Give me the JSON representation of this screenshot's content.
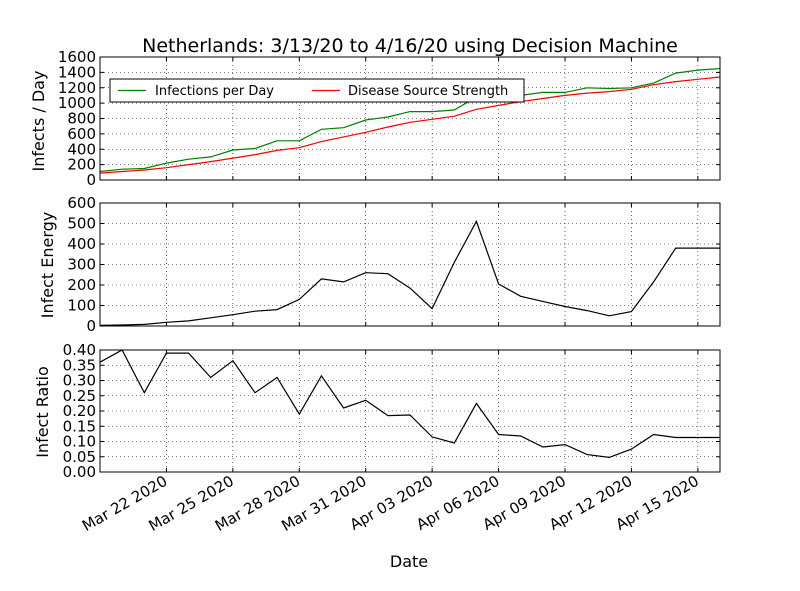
{
  "chart_data": {
    "type": "line",
    "title": "Netherlands: 3/13/20 to 4/16/20 using Decision Machine",
    "xlabel": "Date",
    "x_start": "2020-03-19",
    "x_end": "2020-04-16",
    "x_tick_labels": [
      "Mar 22 2020",
      "Mar 25 2020",
      "Mar 28 2020",
      "Mar 31 2020",
      "Apr 03 2020",
      "Apr 06 2020",
      "Apr 09 2020",
      "Apr 12 2020",
      "Apr 15 2020"
    ],
    "dates": [
      "2020-03-19",
      "2020-03-20",
      "2020-03-21",
      "2020-03-22",
      "2020-03-23",
      "2020-03-24",
      "2020-03-25",
      "2020-03-26",
      "2020-03-27",
      "2020-03-28",
      "2020-03-29",
      "2020-03-30",
      "2020-03-31",
      "2020-04-01",
      "2020-04-02",
      "2020-04-03",
      "2020-04-04",
      "2020-04-05",
      "2020-04-06",
      "2020-04-07",
      "2020-04-08",
      "2020-04-09",
      "2020-04-10",
      "2020-04-11",
      "2020-04-12",
      "2020-04-13",
      "2020-04-14",
      "2020-04-15",
      "2020-04-16"
    ],
    "panels": [
      {
        "ylabel": "Infects / Day",
        "ylim": [
          0,
          1600
        ],
        "yticks": [
          "0",
          "200",
          "400",
          "600",
          "800",
          "1000",
          "1200",
          "1400",
          "1600"
        ],
        "legend_position": "upper-left",
        "series": [
          {
            "name": "Infections per Day",
            "color": "#008000",
            "values": [
              110,
              140,
              150,
              220,
              270,
              300,
              390,
              410,
              510,
              510,
              660,
              680,
              780,
              820,
              890,
              890,
              910,
              1080,
              1110,
              1100,
              1140,
              1140,
              1200,
              1190,
              1200,
              1260,
              1390,
              1430,
              1450
            ]
          },
          {
            "name": "Disease Source Strength",
            "color": "#ff0000",
            "values": [
              90,
              110,
              130,
              160,
              200,
              240,
              285,
              330,
              385,
              420,
              500,
              560,
              620,
              690,
              750,
              790,
              830,
              920,
              970,
              1020,
              1060,
              1100,
              1130,
              1150,
              1180,
              1240,
              1280,
              1310,
              1340
            ]
          }
        ]
      },
      {
        "ylabel": "Infect Energy",
        "ylim": [
          0,
          600
        ],
        "yticks": [
          "0",
          "100",
          "200",
          "300",
          "400",
          "500",
          "600"
        ],
        "series": [
          {
            "name": "Infect Energy",
            "color": "#000000",
            "values": [
              3,
              5,
              8,
              18,
              25,
              40,
              55,
              72,
              80,
              130,
              230,
              215,
              260,
              255,
              185,
              85,
              310,
              510,
              205,
              145,
              120,
              95,
              75,
              50,
              70,
              215,
              380,
              380,
              380
            ]
          }
        ]
      },
      {
        "ylabel": "Infect Ratio",
        "ylim": [
          0,
          0.4
        ],
        "yticks": [
          "0.00",
          "0.05",
          "0.10",
          "0.15",
          "0.20",
          "0.25",
          "0.30",
          "0.35",
          "0.40"
        ],
        "series": [
          {
            "name": "Infect Ratio",
            "color": "#000000",
            "values": [
              0.36,
              0.4,
              0.26,
              0.39,
              0.39,
              0.31,
              0.365,
              0.26,
              0.31,
              0.19,
              0.315,
              0.21,
              0.235,
              0.185,
              0.187,
              0.115,
              0.095,
              0.225,
              0.123,
              0.118,
              0.082,
              0.09,
              0.057,
              0.048,
              0.075,
              0.123,
              0.113,
              0.113,
              0.113
            ]
          }
        ]
      }
    ]
  }
}
